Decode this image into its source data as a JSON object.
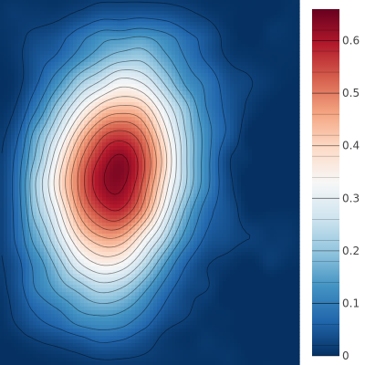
{
  "chart_data": {
    "type": "heatmap",
    "title": "",
    "xlabel": "",
    "ylabel": "",
    "show_x_axis": false,
    "show_y_axis": false,
    "colorscale": "RdBu (reversed)",
    "colorscale_stops": [
      "#053061",
      "#2166ac",
      "#4393c3",
      "#92c5de",
      "#d1e5f0",
      "#f7f7f7",
      "#fddbc7",
      "#f4a582",
      "#d6604d",
      "#b2182b",
      "#67001f"
    ],
    "zmin": 0,
    "zmax": 0.66,
    "contours": {
      "start": 0.02,
      "end": 0.62,
      "step": 0.04,
      "coloring": "heatmap",
      "line_color": "#000000",
      "line_opacity": 0.45
    },
    "peak": {
      "x": 0.39,
      "y": 0.48,
      "value": 0.65
    },
    "surface_note": "single broad peak of ~0.65 near centre-left, values falling to ~0 at all edges",
    "colorbar": {
      "ticks": [
        {
          "value": 0,
          "label": "0"
        },
        {
          "value": 0.1,
          "label": "0.1"
        },
        {
          "value": 0.2,
          "label": "0.2"
        },
        {
          "value": 0.3,
          "label": "0.3"
        },
        {
          "value": 0.4,
          "label": "0.4"
        },
        {
          "value": 0.5,
          "label": "0.5"
        },
        {
          "value": 0.6,
          "label": "0.6"
        }
      ]
    }
  }
}
